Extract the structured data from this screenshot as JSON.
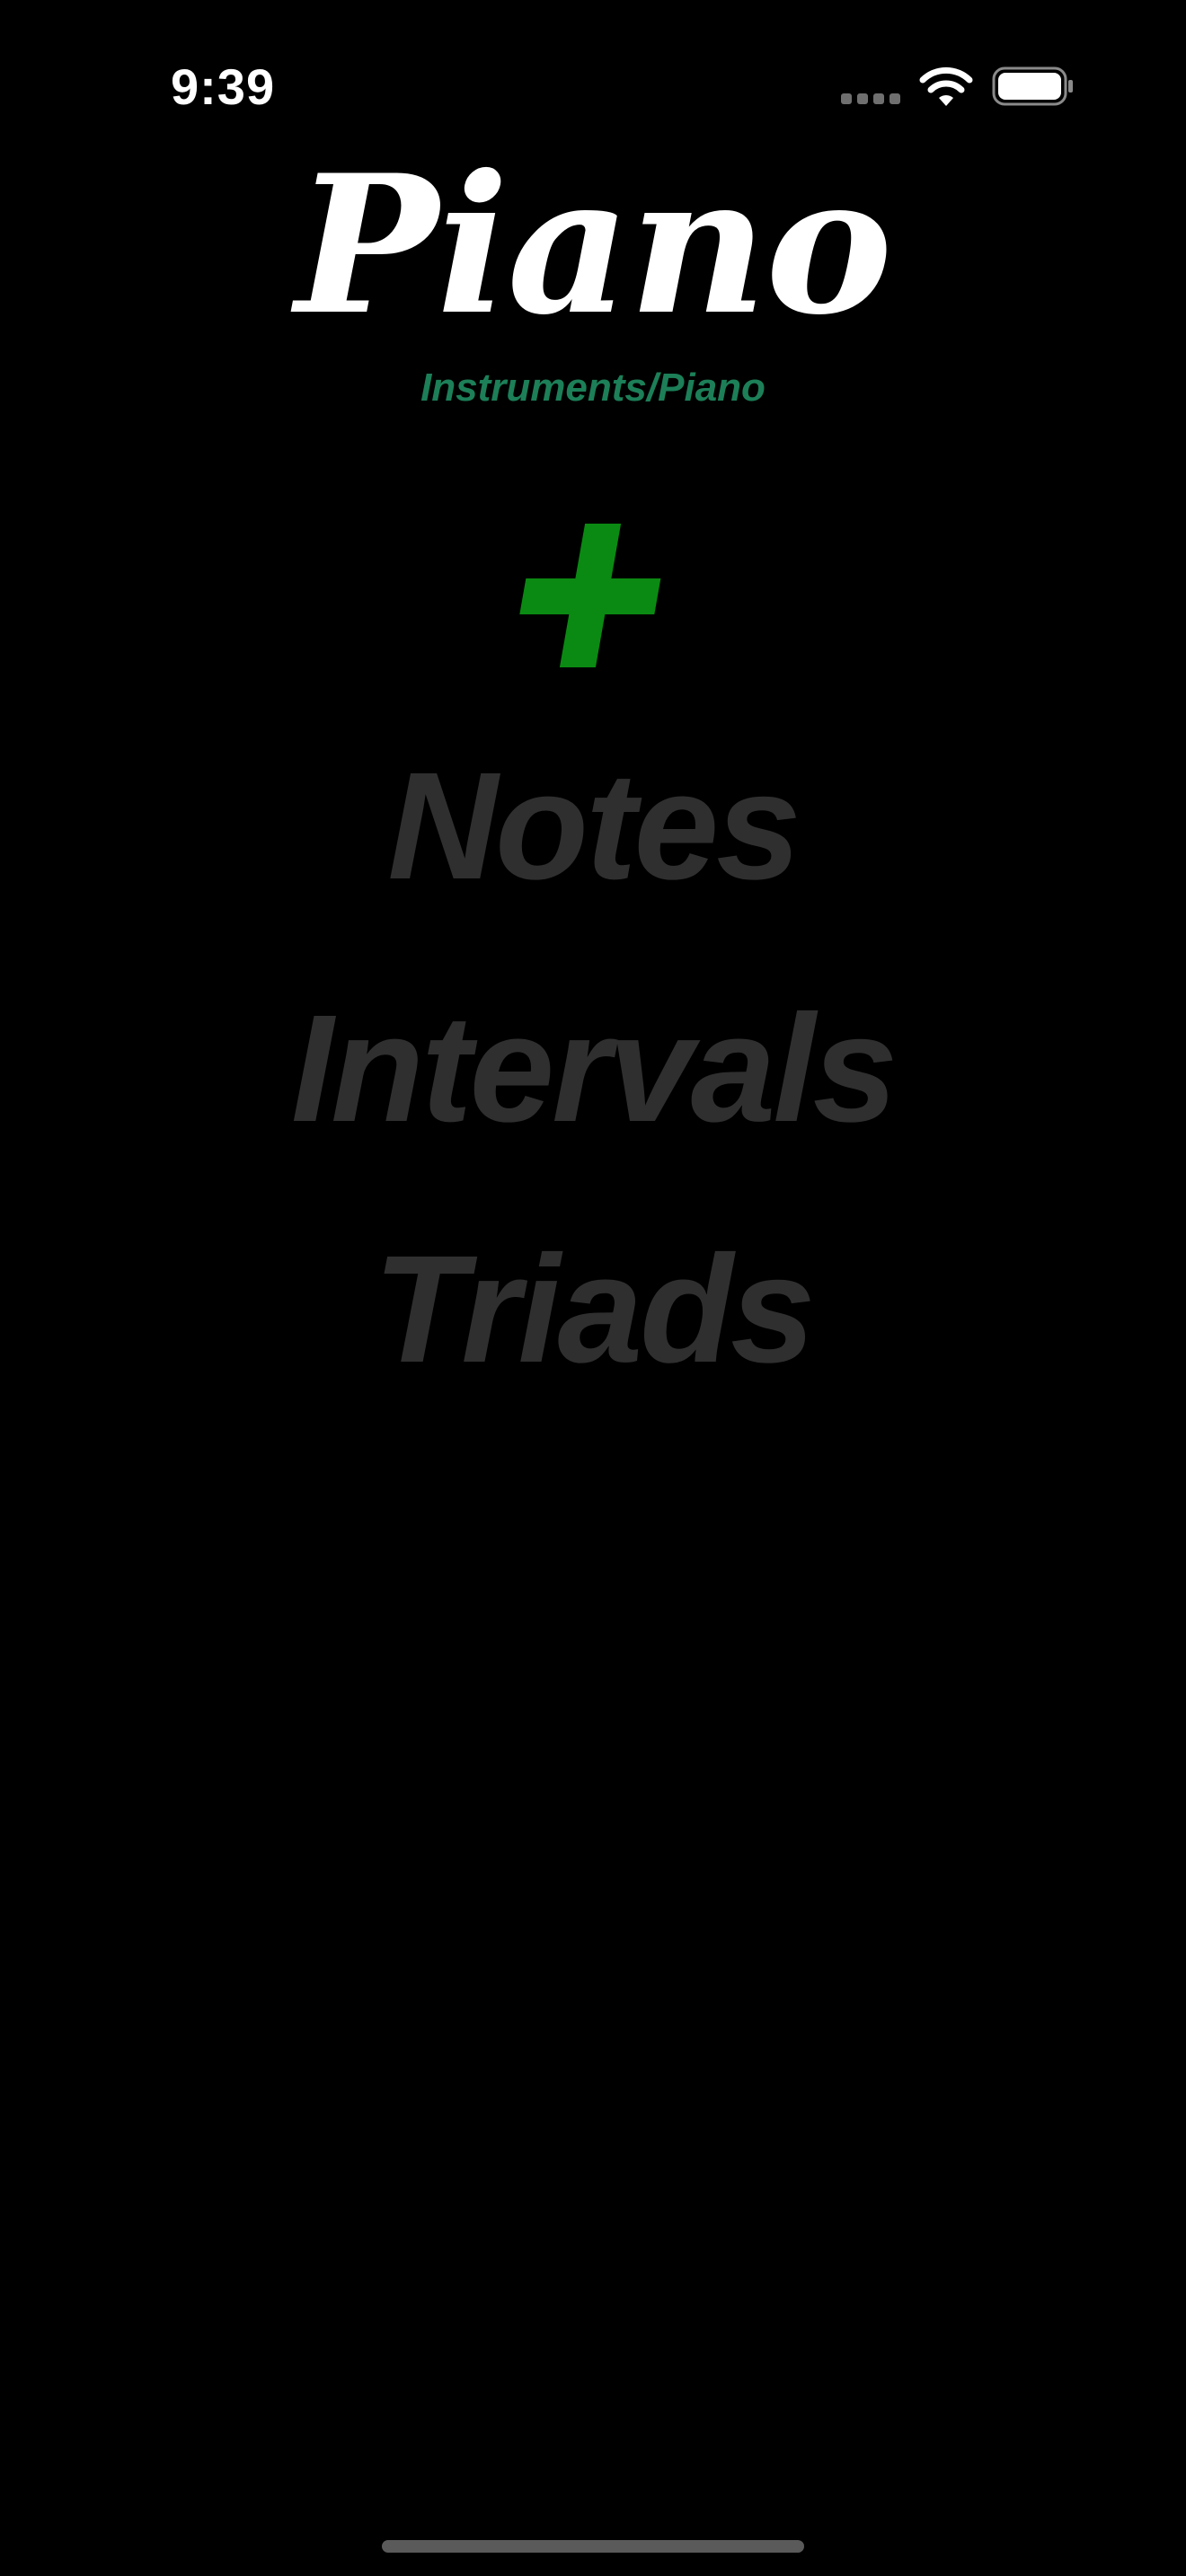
{
  "status_bar": {
    "time": "9:39",
    "icons": [
      "cellular-signal-icon",
      "wifi-icon",
      "battery-icon"
    ]
  },
  "header": {
    "title": "Piano",
    "breadcrumb": "Instruments/Piano"
  },
  "add_button": {
    "icon": "plus-icon",
    "color": "#0a8a12"
  },
  "menu": {
    "items": [
      {
        "label": "Notes"
      },
      {
        "label": "Intervals"
      },
      {
        "label": "Triads"
      }
    ]
  },
  "colors": {
    "background": "#000000",
    "title": "#ffffff",
    "breadcrumb": "#1c7f58",
    "menu_text": "#2f2f2f",
    "accent_plus": "#0a8a12"
  }
}
